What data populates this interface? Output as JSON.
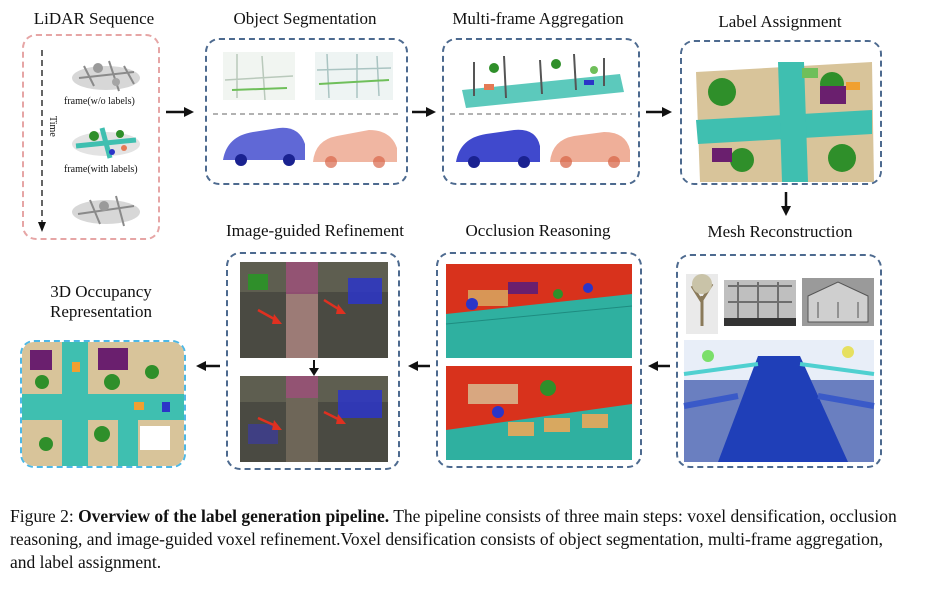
{
  "steps": {
    "lidar_sequence": "LiDAR Sequence",
    "object_segmentation": "Object Segmentation",
    "multi_frame_aggregation": "Multi-frame Aggregation",
    "label_assignment": "Label Assignment",
    "mesh_reconstruction": "Mesh Reconstruction",
    "occlusion_reasoning": "Occlusion Reasoning",
    "image_guided_refinement": "Image-guided Refinement",
    "occupancy_line1": "3D Occupancy",
    "occupancy_line2": "Representation"
  },
  "lidar": {
    "time_label": "Time",
    "frame_without_labels": "frame(w/o labels)",
    "frame_with_labels": "frame(with labels)"
  },
  "caption": {
    "prefix": "Figure 2: ",
    "bold": "Overview of the label generation pipeline.",
    "rest": " The pipeline consists of three main steps: voxel densification, occlusion reasoning, and image-guided voxel refinement.Voxel densification consists of object segmentation, multi-frame aggregation, and label assignment."
  },
  "colors": {
    "box_border": "#4d6a8f",
    "lidar_border": "#e6a5a5",
    "occupancy_border": "#4cb8e6",
    "road": "#3fbfb0",
    "vegetation": "#2f8f2a",
    "building": "#d8c49a",
    "car_blue": "#2b35c8",
    "car_orange": "#e47a55",
    "occlusion_red": "#d8321c",
    "refine_arrow": "#e03020"
  }
}
